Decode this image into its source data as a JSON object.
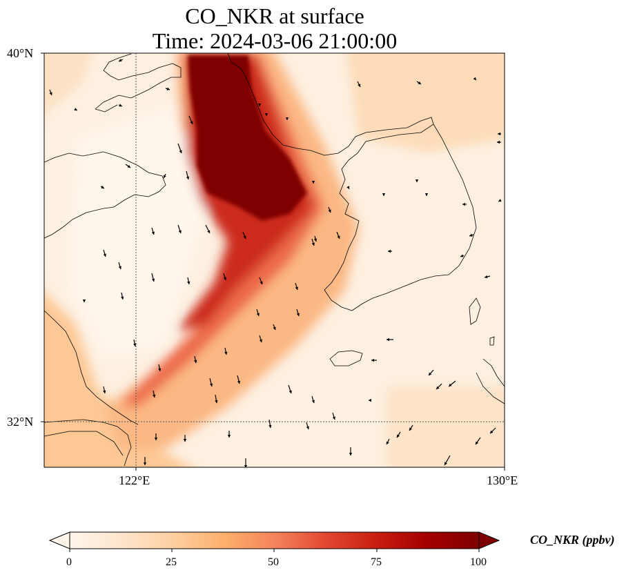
{
  "title": {
    "line1": "CO_NKR at surface",
    "line2": "Time: 2024-03-06 21:00:00"
  },
  "map": {
    "variable": "CO_NKR",
    "level": "surface",
    "lon_range": [
      120,
      130
    ],
    "lat_range": [
      31,
      40
    ],
    "lat_ticks": [
      {
        "value": 40,
        "label": "40°N"
      },
      {
        "value": 32,
        "label": "32°N"
      }
    ],
    "lon_ticks": [
      {
        "value": 122,
        "label": "122°E"
      },
      {
        "value": 130,
        "label": "130°E"
      }
    ],
    "gridlines": {
      "lon": [
        122
      ],
      "lat": [
        32
      ],
      "style": "dotted"
    },
    "coastlines": true,
    "wind_vectors": true
  },
  "colorbar": {
    "label": "CO_NKR (ppbv)",
    "ticks": [
      "0",
      "25",
      "50",
      "75",
      "100"
    ],
    "range": [
      0,
      100
    ],
    "extend": "both",
    "colormap": "OrRd",
    "stops": [
      "#fff5eb",
      "#fee6ce",
      "#fdd0a2",
      "#fdae6b",
      "#fd8d3c",
      "#f16913",
      "#d94801",
      "#a50f15",
      "#7f0000"
    ]
  },
  "colors": {
    "plume_max": "#7f0000",
    "plume_mid": "#e34a33",
    "background_low": "#fff5eb",
    "coastline": "#000000",
    "arrow": "#000000"
  }
}
